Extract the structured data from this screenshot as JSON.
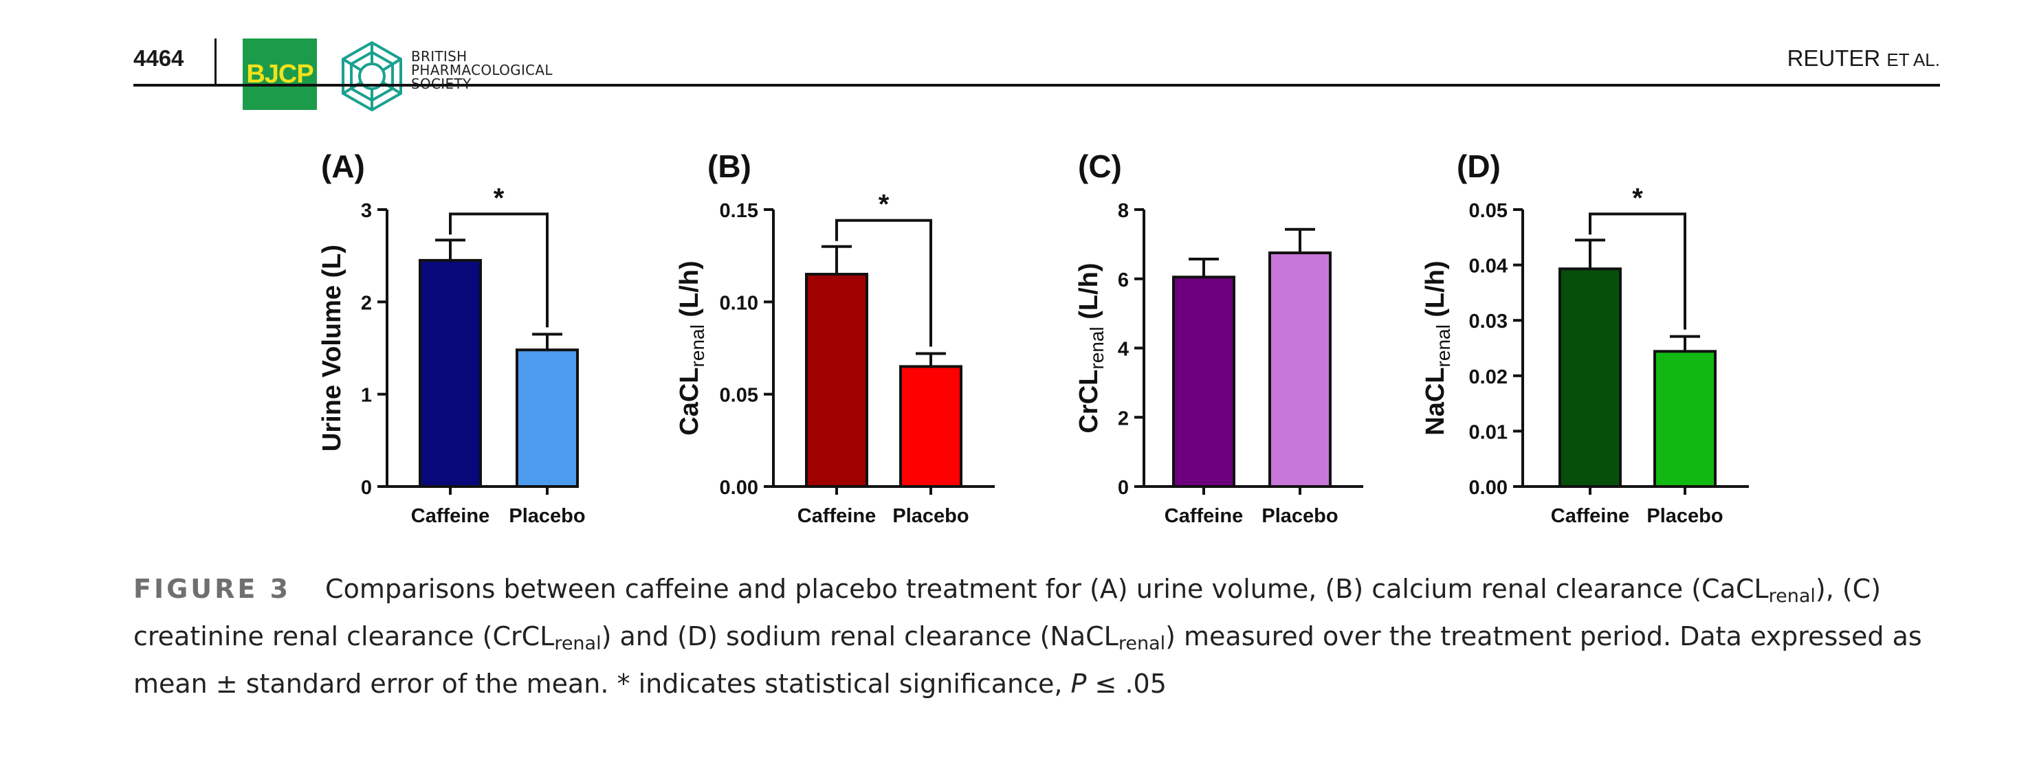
{
  "header": {
    "page_number": "4464",
    "journal_logo": "BJCP",
    "society_name": "BRITISH\nPHARMACOLOGICAL\nSOCIETY",
    "society_logo_icon": "society-emblem-icon",
    "running_head_main": "REUTER",
    "running_head_suffix": "ET AL."
  },
  "chart_data": [
    {
      "panel": "(A)",
      "type": "bar",
      "categories": [
        "Caffeine",
        "Placebo"
      ],
      "values": [
        2.45,
        1.48
      ],
      "errors": [
        0.22,
        0.17
      ],
      "colors": [
        "#08087a",
        "#4d9bee"
      ],
      "ylabel": "Urine Volume (L)",
      "ylabel_sub": "",
      "ylabel_suffix": "",
      "ylim": [
        0,
        3
      ],
      "yticks": [
        "0",
        "1",
        "2",
        "3"
      ],
      "significance": "*"
    },
    {
      "panel": "(B)",
      "type": "bar",
      "categories": [
        "Caffeine",
        "Placebo"
      ],
      "values": [
        0.115,
        0.065
      ],
      "errors": [
        0.015,
        0.007
      ],
      "colors": [
        "#a00000",
        "#fe0000"
      ],
      "ylabel": "CaCL",
      "ylabel_sub": "renal",
      "ylabel_suffix": " (L/h)",
      "ylim": [
        0,
        0.15
      ],
      "yticks": [
        "0.00",
        "0.05",
        "0.10",
        "0.15"
      ],
      "significance": "*"
    },
    {
      "panel": "(C)",
      "type": "bar",
      "categories": [
        "Caffeine",
        "Placebo"
      ],
      "values": [
        6.05,
        6.75
      ],
      "errors": [
        0.52,
        0.68
      ],
      "colors": [
        "#6e0080",
        "#c677d9"
      ],
      "ylabel": "CrCL",
      "ylabel_sub": "renal",
      "ylabel_suffix": " (L/h)",
      "ylim": [
        0,
        8
      ],
      "yticks": [
        "0",
        "2",
        "4",
        "6",
        "8"
      ],
      "significance": ""
    },
    {
      "panel": "(D)",
      "type": "bar",
      "categories": [
        "Caffeine",
        "Placebo"
      ],
      "values": [
        0.0393,
        0.0244
      ],
      "errors": [
        0.0052,
        0.0027
      ],
      "colors": [
        "#064f0a",
        "#12b812"
      ],
      "ylabel": "NaCL",
      "ylabel_sub": "renal",
      "ylabel_suffix": " (L/h)",
      "ylim": [
        0,
        0.05
      ],
      "yticks": [
        "0.00",
        "0.01",
        "0.02",
        "0.03",
        "0.04",
        "0.05"
      ],
      "significance": "*"
    }
  ],
  "caption": {
    "figure_label": "FIGURE 3",
    "t1": "Comparisons between caffeine and placebo treatment for (A) urine volume, (B) calcium renal clearance (CaCL",
    "t2": "), (C) creatinine renal clearance (CrCL",
    "t3": ") and (D) sodium renal clearance (NaCL",
    "t4": ") measured over the treatment period. Data expressed as mean ± standard error of the mean. * indicates statistical significance, ",
    "p_symbol": "P",
    "t5": " ≤ .05",
    "subscript": "renal"
  }
}
